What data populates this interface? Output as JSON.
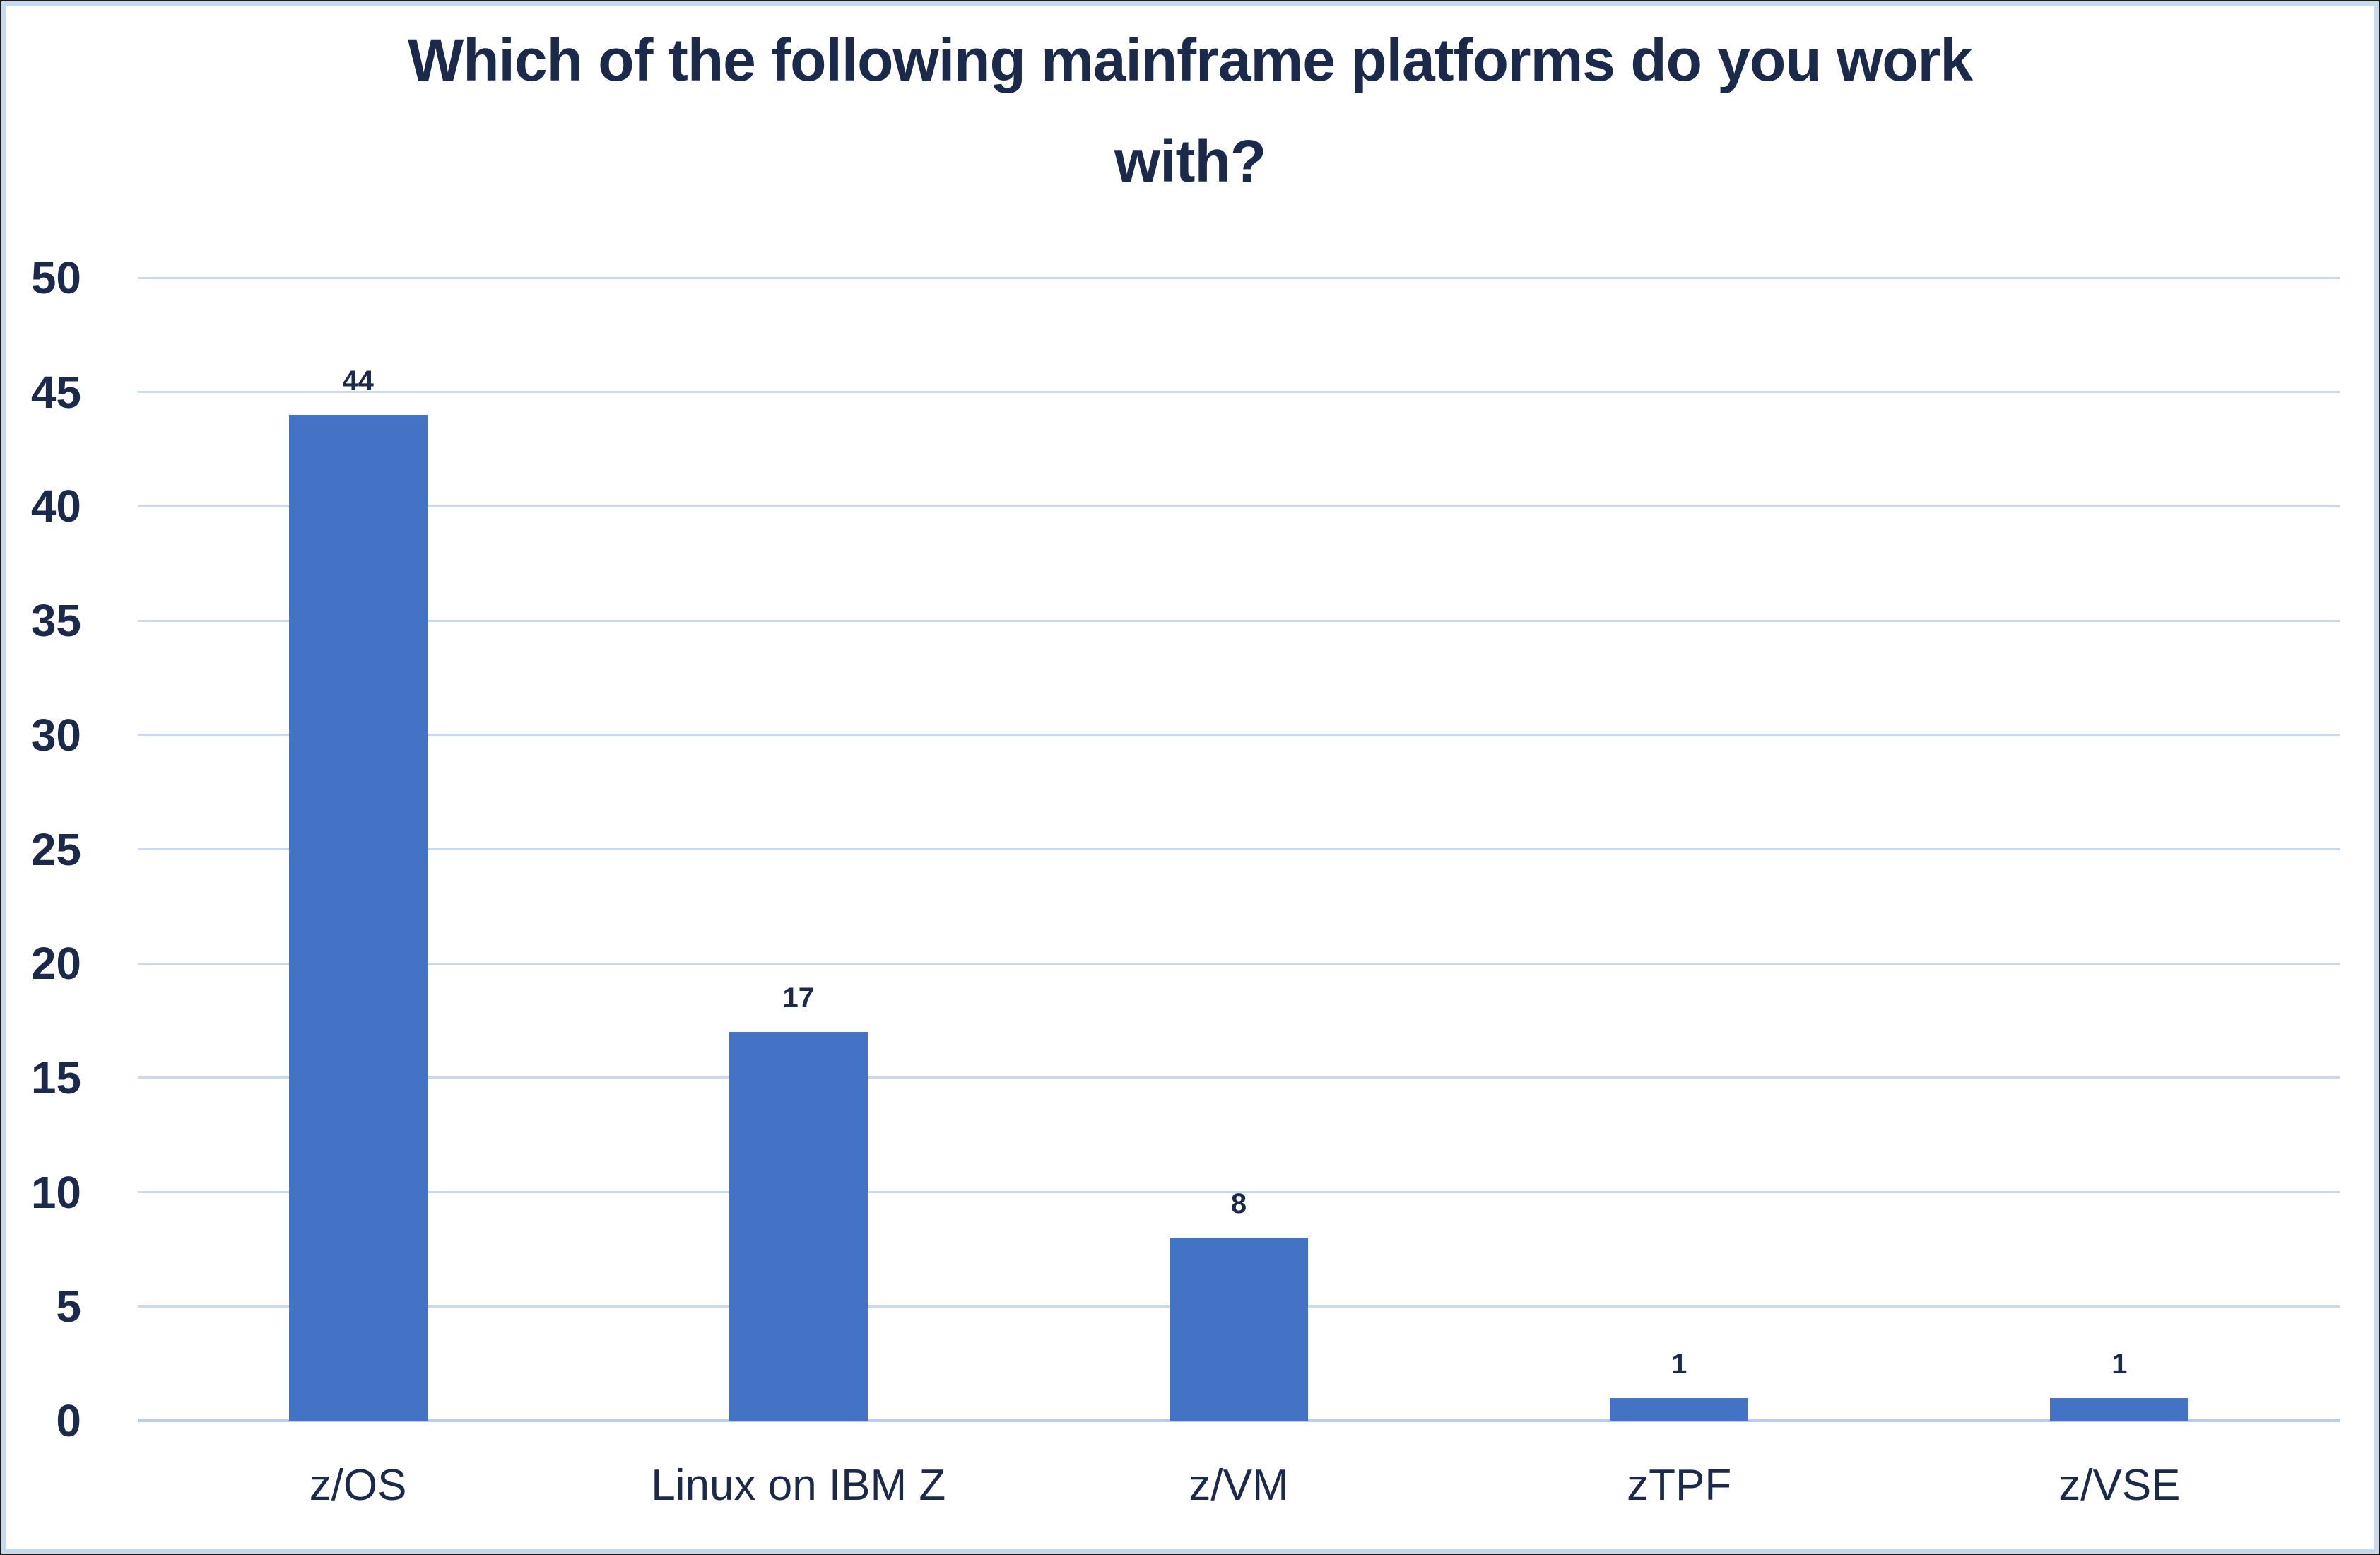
{
  "chart_data": {
    "type": "bar",
    "title": "Which of the following mainframe platforms do you work\nwith?",
    "categories": [
      "z/OS",
      "Linux on IBM Z",
      "z/VM",
      "zTPF",
      "z/VSE"
    ],
    "values": [
      44,
      17,
      8,
      1,
      1
    ],
    "data_labels": [
      "44",
      "17",
      "8",
      "1",
      "1"
    ],
    "xlabel": "",
    "ylabel": "",
    "ylim": [
      0,
      50
    ],
    "ytick_step": 5,
    "yticks": [
      50,
      45,
      40,
      35,
      30,
      25,
      20,
      15,
      10,
      5,
      0
    ],
    "grid": true,
    "legend": "none",
    "colors": {
      "bar": "#4472C4",
      "gridline": "#C9D9EF",
      "axis_line": "#B7CDE8",
      "text": "#1B2A4B",
      "background": "#FFFFFF",
      "frame_border": "#C6D9EF"
    }
  }
}
